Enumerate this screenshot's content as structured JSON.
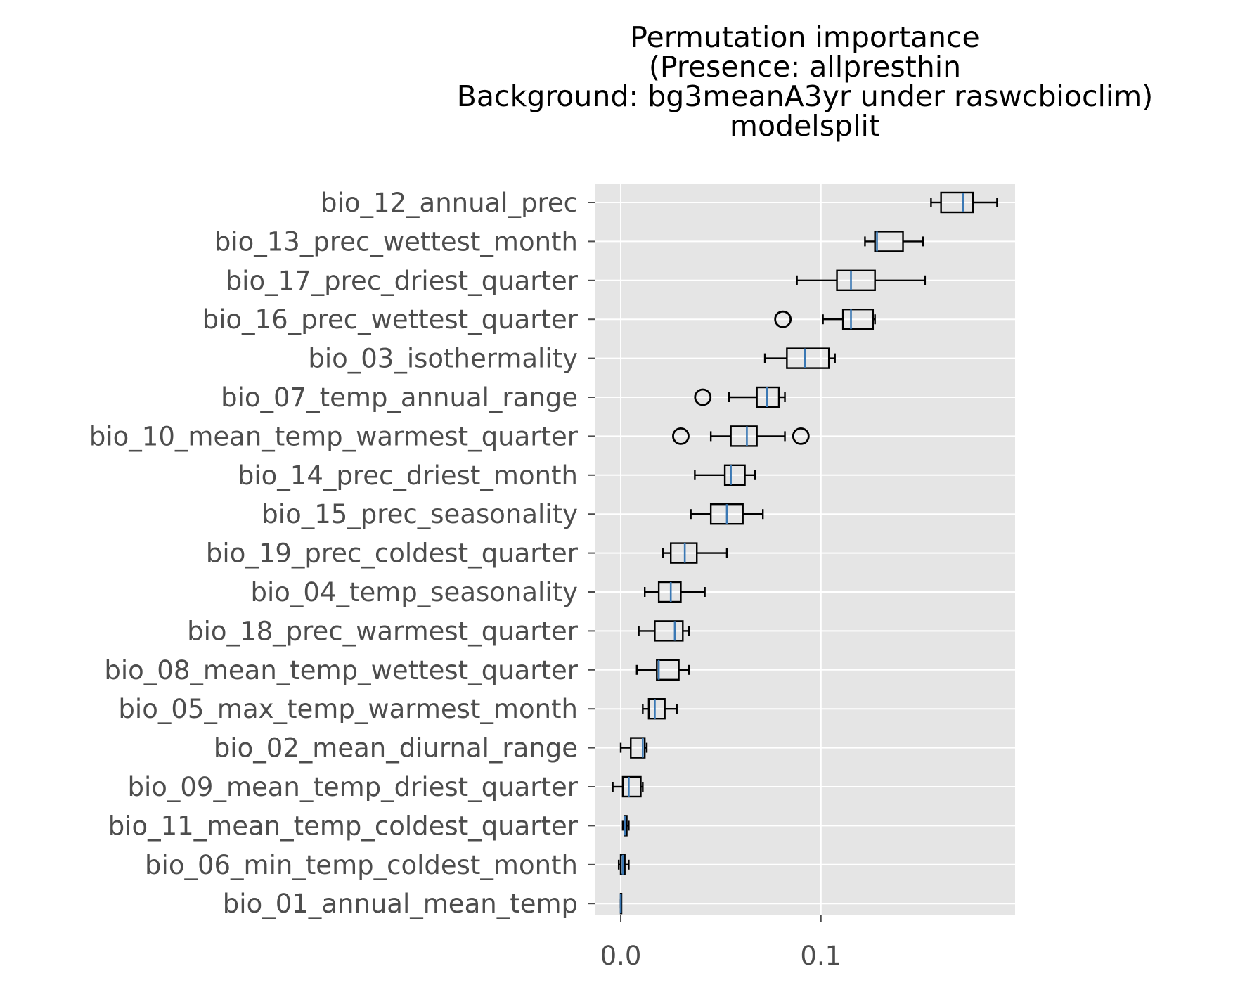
{
  "chart_data": {
    "type": "box",
    "orientation": "horizontal",
    "title_lines": [
      "Permutation importance",
      "(Presence: allpresthin",
      "Background: bg3meanA3yr under raswcbioclim)",
      "modelsplit"
    ],
    "xlabel": "",
    "ylabel": "",
    "xlim": [
      -0.013,
      0.197
    ],
    "xticks": [
      {
        "value": 0.0,
        "label": "0.0"
      },
      {
        "value": 0.1,
        "label": "0.1"
      }
    ],
    "grid": true,
    "style": {
      "plot_background": "#e5e5e5",
      "grid_color": "#ffffff",
      "box_color": "#000000",
      "median_color": "#3a78b4",
      "tick_label_color": "#4d4d4d"
    },
    "series": [
      {
        "label": "bio_12_annual_prec",
        "whisker_low": 0.155,
        "q1": 0.16,
        "median": 0.171,
        "q3": 0.176,
        "whisker_high": 0.188,
        "outliers": []
      },
      {
        "label": "bio_13_prec_wettest_month",
        "whisker_low": 0.122,
        "q1": 0.127,
        "median": 0.128,
        "q3": 0.141,
        "whisker_high": 0.151,
        "outliers": []
      },
      {
        "label": "bio_17_prec_driest_quarter",
        "whisker_low": 0.088,
        "q1": 0.108,
        "median": 0.115,
        "q3": 0.127,
        "whisker_high": 0.152,
        "outliers": []
      },
      {
        "label": "bio_16_prec_wettest_quarter",
        "whisker_low": 0.101,
        "q1": 0.111,
        "median": 0.115,
        "q3": 0.126,
        "whisker_high": 0.127,
        "outliers": [
          0.081
        ]
      },
      {
        "label": "bio_03_isothermality",
        "whisker_low": 0.072,
        "q1": 0.083,
        "median": 0.092,
        "q3": 0.104,
        "whisker_high": 0.107,
        "outliers": []
      },
      {
        "label": "bio_07_temp_annual_range",
        "whisker_low": 0.054,
        "q1": 0.068,
        "median": 0.073,
        "q3": 0.079,
        "whisker_high": 0.082,
        "outliers": [
          0.041
        ]
      },
      {
        "label": "bio_10_mean_temp_warmest_quarter",
        "whisker_low": 0.045,
        "q1": 0.055,
        "median": 0.063,
        "q3": 0.068,
        "whisker_high": 0.082,
        "outliers": [
          0.03,
          0.09
        ]
      },
      {
        "label": "bio_14_prec_driest_month",
        "whisker_low": 0.037,
        "q1": 0.052,
        "median": 0.055,
        "q3": 0.062,
        "whisker_high": 0.067,
        "outliers": []
      },
      {
        "label": "bio_15_prec_seasonality",
        "whisker_low": 0.035,
        "q1": 0.045,
        "median": 0.053,
        "q3": 0.061,
        "whisker_high": 0.071,
        "outliers": []
      },
      {
        "label": "bio_19_prec_coldest_quarter",
        "whisker_low": 0.021,
        "q1": 0.025,
        "median": 0.032,
        "q3": 0.038,
        "whisker_high": 0.053,
        "outliers": []
      },
      {
        "label": "bio_04_temp_seasonality",
        "whisker_low": 0.012,
        "q1": 0.019,
        "median": 0.025,
        "q3": 0.03,
        "whisker_high": 0.042,
        "outliers": []
      },
      {
        "label": "bio_18_prec_warmest_quarter",
        "whisker_low": 0.009,
        "q1": 0.017,
        "median": 0.027,
        "q3": 0.031,
        "whisker_high": 0.034,
        "outliers": []
      },
      {
        "label": "bio_08_mean_temp_wettest_quarter",
        "whisker_low": 0.008,
        "q1": 0.018,
        "median": 0.019,
        "q3": 0.029,
        "whisker_high": 0.034,
        "outliers": []
      },
      {
        "label": "bio_05_max_temp_warmest_month",
        "whisker_low": 0.011,
        "q1": 0.014,
        "median": 0.017,
        "q3": 0.022,
        "whisker_high": 0.028,
        "outliers": []
      },
      {
        "label": "bio_02_mean_diurnal_range",
        "whisker_low": 0.0,
        "q1": 0.005,
        "median": 0.011,
        "q3": 0.012,
        "whisker_high": 0.013,
        "outliers": []
      },
      {
        "label": "bio_09_mean_temp_driest_quarter",
        "whisker_low": -0.004,
        "q1": 0.001,
        "median": 0.004,
        "q3": 0.01,
        "whisker_high": 0.011,
        "outliers": []
      },
      {
        "label": "bio_11_mean_temp_coldest_quarter",
        "whisker_low": 0.001,
        "q1": 0.002,
        "median": 0.002,
        "q3": 0.003,
        "whisker_high": 0.004,
        "outliers": []
      },
      {
        "label": "bio_06_min_temp_coldest_month",
        "whisker_low": -0.001,
        "q1": 0.0,
        "median": 0.001,
        "q3": 0.002,
        "whisker_high": 0.004,
        "outliers": []
      },
      {
        "label": "bio_01_annual_mean_temp",
        "whisker_low": 0.0,
        "q1": 0.0,
        "median": 0.0,
        "q3": 0.0,
        "whisker_high": 0.0,
        "outliers": []
      }
    ]
  }
}
